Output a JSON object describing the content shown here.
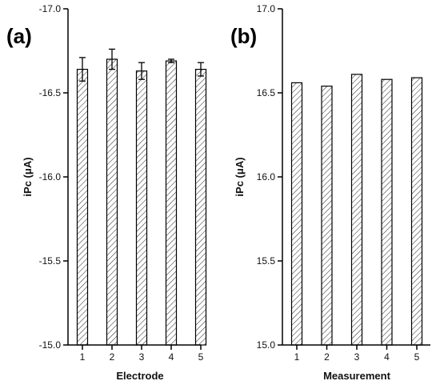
{
  "chart_data": [
    {
      "type": "bar",
      "panel_label": "(a)",
      "xlabel": "Electrode",
      "ylabel": "iPc (μA)",
      "categories": [
        "1",
        "2",
        "3",
        "4",
        "5"
      ],
      "values": [
        -16.64,
        -16.7,
        -16.63,
        -16.69,
        -16.64
      ],
      "errors": [
        0.07,
        0.06,
        0.05,
        0.01,
        0.04
      ],
      "ylim": [
        -15.0,
        -17.0
      ],
      "yticks": [
        "-17.0",
        "-16.5",
        "-16.0",
        "-15.5",
        "-15.0"
      ],
      "ytick_values": [
        -17.0,
        -16.5,
        -16.0,
        -15.5,
        -15.0
      ],
      "grid": false,
      "bar_style": "hatched"
    },
    {
      "type": "bar",
      "panel_label": "(b)",
      "xlabel": "Measurement",
      "ylabel": "iPc (μA)",
      "categories": [
        "1",
        "2",
        "3",
        "4",
        "5"
      ],
      "values": [
        16.56,
        16.54,
        16.61,
        16.58,
        16.59
      ],
      "ylim": [
        15.0,
        17.0
      ],
      "yticks": [
        "17.0",
        "16.5",
        "16.0",
        "15.5",
        "15.0"
      ],
      "ytick_values": [
        17.0,
        16.5,
        16.0,
        15.5,
        15.0
      ],
      "grid": false,
      "bar_style": "hatched"
    }
  ]
}
